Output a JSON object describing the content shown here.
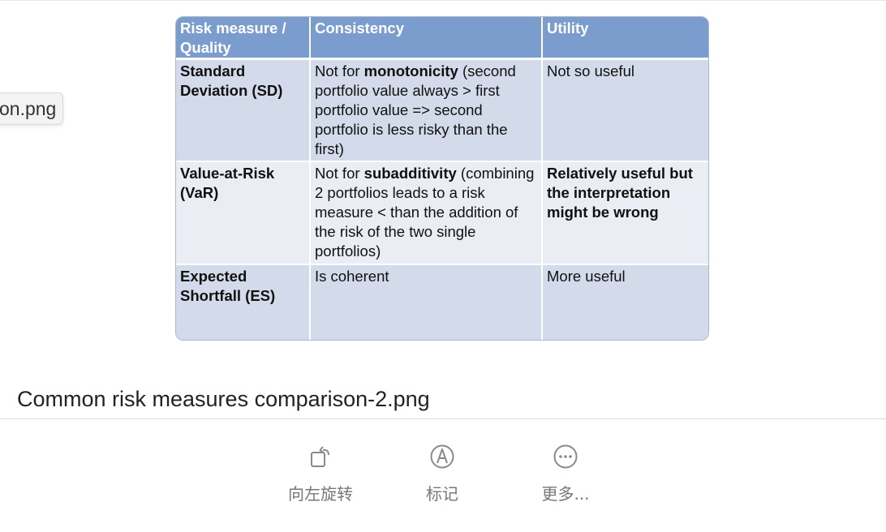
{
  "side_chip": {
    "text": "on.png"
  },
  "table": {
    "headers": [
      "Risk measure / Quality",
      "Consistency",
      "Utility"
    ],
    "rows": [
      {
        "measure": "Standard Deviation (SD)",
        "consistency_pre": "Not for ",
        "consistency_bold": "monotonicity",
        "consistency_post": " (second portfolio value always > first portfolio value => second portfolio is less risky than the first)",
        "utility": "Not so useful",
        "utility_bold": false
      },
      {
        "measure": "Value-at-Risk (VaR)",
        "consistency_pre": "Not for ",
        "consistency_bold": "subadditivity",
        "consistency_post": " (combining 2 portfolios leads to a risk measure < than the addition of the risk of the two single portfolios)",
        "utility": "Relatively useful but the interpretation might be wrong",
        "utility_bold": true
      },
      {
        "measure": "Expected Shortfall (ES)",
        "consistency_pre": "Is coherent",
        "consistency_bold": "",
        "consistency_post": "",
        "utility": "More useful",
        "utility_bold": false
      }
    ]
  },
  "caption": "Common risk measures comparison-2.png",
  "toolbar": {
    "items": [
      {
        "label": "向左旋转",
        "icon": "rotate-left-icon"
      },
      {
        "label": "标记",
        "icon": "markup-icon"
      },
      {
        "label": "更多...",
        "icon": "more-icon"
      }
    ]
  }
}
